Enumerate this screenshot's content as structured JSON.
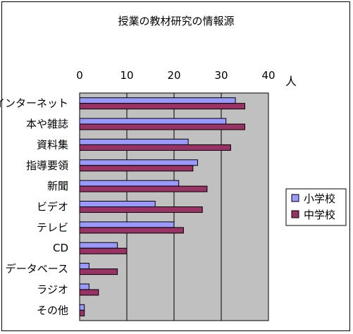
{
  "chart_data": {
    "type": "bar",
    "orientation": "horizontal",
    "title": "授業の教材研究の情報源",
    "unit_label": "人",
    "xlim": [
      0,
      40
    ],
    "x_ticks": [
      0,
      10,
      20,
      30,
      40
    ],
    "categories": [
      "インターネット",
      "本や雑誌",
      "資料集",
      "指導要領",
      "新聞",
      "ビデオ",
      "テレビ",
      "CD",
      "データベース",
      "ラジオ",
      "その他"
    ],
    "series": [
      {
        "name": "小学校",
        "color": "#9999ff",
        "values": [
          33,
          31,
          23,
          25,
          21,
          16,
          20,
          8,
          2,
          2,
          1
        ]
      },
      {
        "name": "中学校",
        "color": "#993366",
        "values": [
          35,
          35,
          32,
          24,
          27,
          26,
          22,
          10,
          8,
          4,
          1
        ]
      }
    ],
    "plot_background": "#c0c0c0",
    "grid": true,
    "legend_position": "right"
  }
}
